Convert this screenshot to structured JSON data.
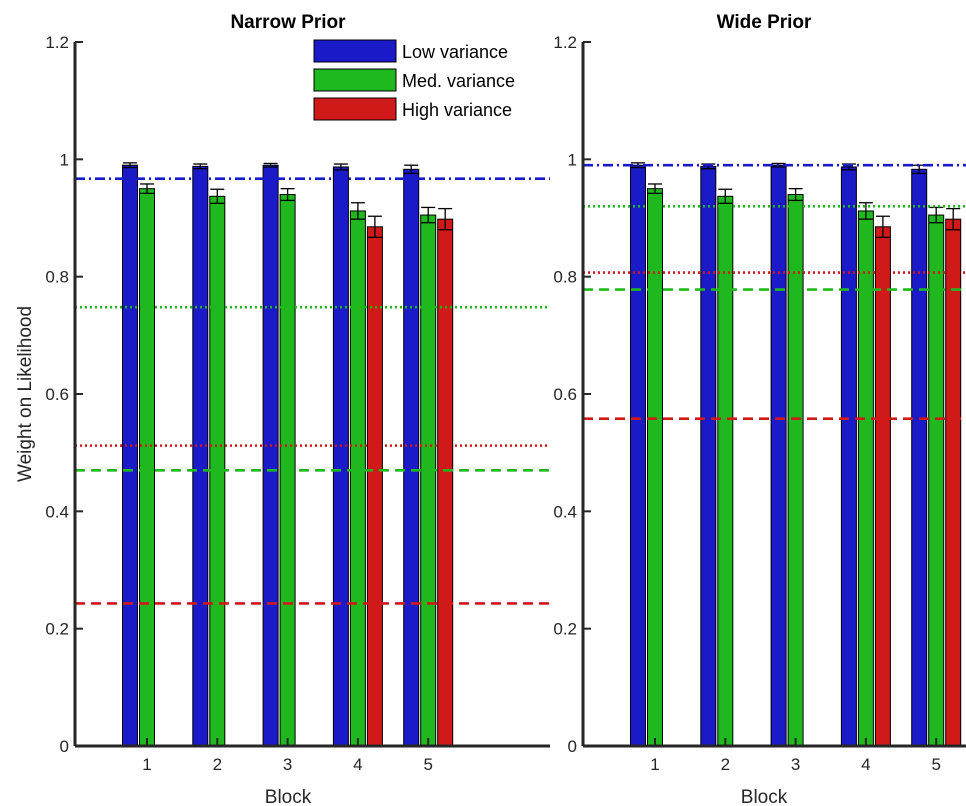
{
  "chart_data": [
    {
      "type": "bar",
      "title": "Narrow Prior",
      "xlabel": "Block",
      "ylabel": "Weight on Likelihood",
      "ylim": [
        0,
        1.2
      ],
      "yticks": [
        "0",
        "0.2",
        "0.4",
        "0.6",
        "0.8",
        "1",
        "1.2"
      ],
      "categories": [
        "1",
        "2",
        "3",
        "4",
        "5"
      ],
      "legend_position": "top-right",
      "series": [
        {
          "name": "Low variance",
          "color": "#1a1ac8",
          "values": [
            0.99,
            0.988,
            0.99,
            0.987,
            0.983
          ],
          "errors": [
            0.004,
            0.004,
            0.003,
            0.005,
            0.007
          ]
        },
        {
          "name": "Med. variance",
          "color": "#1fb81f",
          "values": [
            0.95,
            0.937,
            0.94,
            0.912,
            0.905
          ],
          "errors": [
            0.008,
            0.012,
            0.01,
            0.014,
            0.013
          ]
        },
        {
          "name": "High variance",
          "color": "#d01919",
          "values": [
            null,
            null,
            null,
            0.885,
            0.898
          ],
          "errors": [
            null,
            null,
            null,
            0.018,
            0.018
          ]
        }
      ],
      "reference_lines": [
        {
          "color": "#1a1ac8",
          "style": "dashdot",
          "y": 0.967
        },
        {
          "color": "#1fb81f",
          "style": "dotted",
          "y": 0.748
        },
        {
          "color": "#d01919",
          "style": "dotted",
          "y": 0.512
        },
        {
          "color": "#1fb81f",
          "style": "dashed",
          "y": 0.47
        },
        {
          "color": "#d01919",
          "style": "dashed",
          "y": 0.243
        }
      ]
    },
    {
      "type": "bar",
      "title": "Wide Prior",
      "xlabel": "Block",
      "ylabel": "",
      "ylim": [
        0,
        1.2
      ],
      "yticks": [
        "0",
        "0.2",
        "0.4",
        "0.6",
        "0.8",
        "1",
        "1.2"
      ],
      "categories": [
        "1",
        "2",
        "3",
        "4",
        "5"
      ],
      "series": [
        {
          "color": "#1a1ac8",
          "values": [
            0.99,
            0.988,
            0.99,
            0.987,
            0.983
          ],
          "errors": [
            0.004,
            0.004,
            0.003,
            0.005,
            0.007
          ]
        },
        {
          "color": "#1fb81f",
          "values": [
            0.95,
            0.937,
            0.94,
            0.912,
            0.905
          ],
          "errors": [
            0.008,
            0.012,
            0.01,
            0.014,
            0.013
          ]
        },
        {
          "color": "#d01919",
          "values": [
            null,
            null,
            null,
            0.885,
            0.898
          ],
          "errors": [
            null,
            null,
            null,
            0.018,
            0.018
          ]
        }
      ],
      "reference_lines": [
        {
          "color": "#1a1ac8",
          "style": "dashdot",
          "y": 0.99
        },
        {
          "color": "#1fb81f",
          "style": "dotted",
          "y": 0.92
        },
        {
          "color": "#d01919",
          "style": "dotted",
          "y": 0.807
        },
        {
          "color": "#1fb81f",
          "style": "dashed",
          "y": 0.778
        },
        {
          "color": "#d01919",
          "style": "dashed",
          "y": 0.558
        }
      ]
    }
  ]
}
